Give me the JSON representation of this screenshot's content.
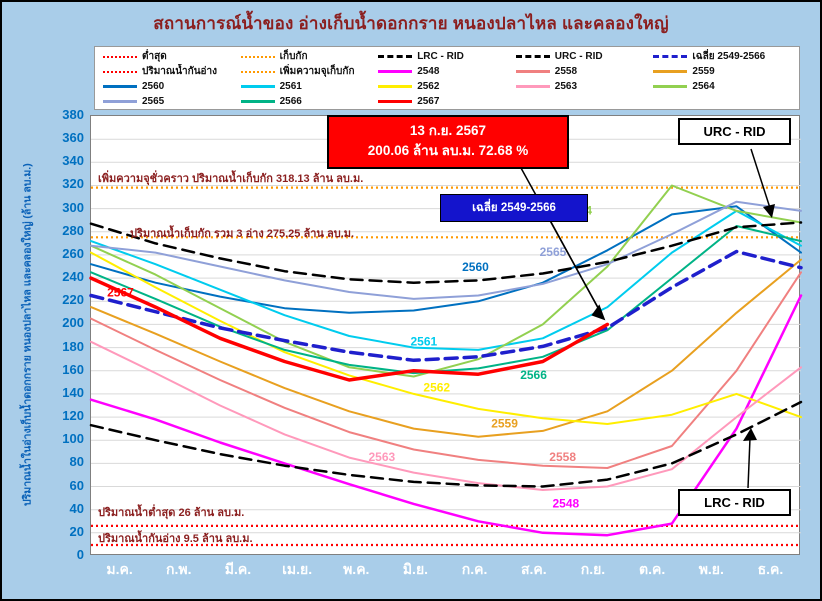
{
  "title": "สถานการณ์น้ำของ อ่างเก็บน้ำดอกกราย หนองปลาไหล และคลองใหญ่",
  "y_axis_title": "ปริมาณน้ำในอ่างเก็บน้ำดอกกราย หนองปลาไหล และคลองใหญ่ (ล้าน ลบ.ม.)",
  "annotations": {
    "callout_date": "13 ก.ย. 2567",
    "callout_value": "200.06 ล้าน ลบ.ม. 72.68 %",
    "avg_label": "เฉลี่ย 2549-2566",
    "urc_label": "URC - RID",
    "lrc_label": "LRC - RID",
    "temp_capacity_note": "เพิ่มความจุชั่วคราว ปริมาณน้ำเก็บกัก 318.13 ล้าน ลบ.ม.",
    "capacity_note": "ปริมาณน้ำเก็บกัก รวม 3 อ่าง 275.25 ล้าน ลบ.ม.",
    "min_note": "ปริมาณน้ำต่ำสุด 26 ล้าน ลบ.ม.",
    "dead_storage_note": "ปริมาณน้ำกันอ่าง 9.5 ล้าน ลบ.ม."
  },
  "legend": {
    "position": "top",
    "items": [
      {
        "label": "ต่ำสุด",
        "color": "#FF0000",
        "style": "dotted"
      },
      {
        "label": "เก็บกัก",
        "color": "#FF9900",
        "style": "dotted"
      },
      {
        "label": "LRC - RID",
        "color": "#000000",
        "style": "dashed"
      },
      {
        "label": "URC - RID",
        "color": "#000000",
        "style": "dashed"
      },
      {
        "label": "เฉลี่ย 2549-2566",
        "color": "#1F1FCC",
        "style": "dashed"
      },
      {
        "label": "ปริมาณน้ำกันอ่าง",
        "color": "#FF0000",
        "style": "dotted"
      },
      {
        "label": "เพิ่มความจุเก็บกัก",
        "color": "#FF9900",
        "style": "dotted"
      },
      {
        "label": "2548",
        "color": "#FF00FF",
        "style": "solid"
      },
      {
        "label": "2558",
        "color": "#F08080",
        "style": "solid"
      },
      {
        "label": "2559",
        "color": "#E8A020",
        "style": "solid"
      },
      {
        "label": "2560",
        "color": "#0070C0",
        "style": "solid"
      },
      {
        "label": "2561",
        "color": "#00CCEE",
        "style": "solid"
      },
      {
        "label": "2562",
        "color": "#FFEE00",
        "style": "solid"
      },
      {
        "label": "2563",
        "color": "#FF99BB",
        "style": "solid"
      },
      {
        "label": "2564",
        "color": "#92D050",
        "style": "solid"
      },
      {
        "label": "2565",
        "color": "#8FA0D8",
        "style": "solid"
      },
      {
        "label": "2566",
        "color": "#00B386",
        "style": "solid"
      },
      {
        "label": "2567",
        "color": "#FF0000",
        "style": "solid"
      }
    ]
  },
  "chart_data": {
    "type": "line",
    "title": "สถานการณ์น้ำของ อ่างเก็บน้ำดอกกราย หนองปลาไหล และคลองใหญ่",
    "xlabel": "",
    "ylabel": "ปริมาณน้ำในอ่างเก็บน้ำดอกกราย หนองปลาไหล และคลองใหญ่ (ล้าน ลบ.ม.)",
    "x_labels": [
      "ม.ค.",
      "ก.พ.",
      "มี.ค.",
      "เม.ย.",
      "พ.ค.",
      "มิ.ย.",
      "ก.ค.",
      "ส.ค.",
      "ก.ย.",
      "ต.ค.",
      "พ.ย.",
      "ธ.ค."
    ],
    "ylim": [
      0,
      380
    ],
    "y_tick_step": 20,
    "grid": "horizontal",
    "reference_lines": [
      {
        "name": "ปริมาณน้ำกันอ่าง",
        "value": 9.5,
        "color": "#FF0000",
        "style": "dotted"
      },
      {
        "name": "ต่ำสุด",
        "value": 26,
        "color": "#FF0000",
        "style": "dotted"
      },
      {
        "name": "เก็บกัก รวม 3 อ่าง",
        "value": 275.25,
        "color": "#FF9900",
        "style": "dotted"
      },
      {
        "name": "เพิ่มความจุชั่วคราว",
        "value": 318.13,
        "color": "#FF9900",
        "style": "dotted"
      }
    ],
    "latest_point": {
      "date": "13 ก.ย. 2567",
      "value": 200.06,
      "percent": 72.68
    },
    "series": [
      {
        "name": "2548",
        "color": "#FF00FF",
        "width": 2.5,
        "values": [
          135,
          118,
          98,
          80,
          62,
          45,
          30,
          20,
          18,
          28,
          110,
          225
        ]
      },
      {
        "name": "2558",
        "color": "#F08080",
        "width": 2,
        "values": [
          205,
          178,
          152,
          128,
          107,
          92,
          83,
          78,
          76,
          95,
          160,
          245
        ]
      },
      {
        "name": "2559",
        "color": "#E8A020",
        "width": 2,
        "values": [
          215,
          192,
          168,
          145,
          125,
          110,
          103,
          108,
          125,
          160,
          210,
          256
        ]
      },
      {
        "name": "2560",
        "color": "#0070C0",
        "width": 2,
        "values": [
          252,
          236,
          224,
          214,
          210,
          212,
          220,
          236,
          264,
          295,
          302,
          262
        ]
      },
      {
        "name": "2561",
        "color": "#00CCEE",
        "width": 2,
        "values": [
          272,
          252,
          230,
          208,
          190,
          180,
          178,
          188,
          215,
          262,
          298,
          268
        ]
      },
      {
        "name": "2562",
        "color": "#FFEE00",
        "width": 2,
        "values": [
          262,
          232,
          203,
          176,
          156,
          140,
          127,
          119,
          114,
          122,
          140,
          120
        ]
      },
      {
        "name": "2563",
        "color": "#FF99BB",
        "width": 2,
        "values": [
          185,
          158,
          130,
          105,
          85,
          72,
          63,
          57,
          60,
          75,
          120,
          163
        ]
      },
      {
        "name": "2564",
        "color": "#92D050",
        "width": 2,
        "values": [
          268,
          243,
          214,
          185,
          163,
          155,
          170,
          200,
          250,
          320,
          298,
          288
        ]
      },
      {
        "name": "2565",
        "color": "#8FA0D8",
        "width": 2,
        "values": [
          268,
          262,
          250,
          238,
          228,
          222,
          225,
          235,
          252,
          278,
          306,
          298
        ]
      },
      {
        "name": "2566",
        "color": "#00B386",
        "width": 2,
        "values": [
          245,
          222,
          198,
          178,
          165,
          158,
          162,
          172,
          195,
          240,
          285,
          272
        ]
      },
      {
        "name": "LRC - RID",
        "color": "#000000",
        "width": 2.5,
        "dash": "dashed",
        "values": [
          113,
          100,
          88,
          78,
          70,
          64,
          61,
          60,
          66,
          80,
          105,
          133
        ]
      },
      {
        "name": "URC - RID",
        "color": "#000000",
        "width": 2.5,
        "dash": "dashed",
        "values": [
          287,
          270,
          257,
          246,
          239,
          236,
          238,
          244,
          254,
          268,
          284,
          288
        ]
      },
      {
        "name": "เฉลี่ย 2549-2566",
        "color": "#1F1FCC",
        "width": 3.5,
        "dash": "dashed",
        "values": [
          225,
          211,
          197,
          186,
          176,
          169,
          172,
          181,
          197,
          232,
          263,
          249
        ]
      },
      {
        "name": "2567",
        "color": "#FF0000",
        "width": 3.5,
        "values": [
          240,
          215,
          188,
          168,
          152,
          160,
          157,
          168,
          200
        ]
      }
    ],
    "series_labels": [
      {
        "text": "2567",
        "m": 0.25,
        "v": 224
      },
      {
        "text": "2560",
        "m": 5.75,
        "v": 246
      },
      {
        "text": "2561",
        "m": 4.95,
        "v": 182
      },
      {
        "text": "2562",
        "m": 5.15,
        "v": 142
      },
      {
        "text": "2563",
        "m": 4.3,
        "v": 82
      },
      {
        "text": "2559",
        "m": 6.2,
        "v": 111
      },
      {
        "text": "2558",
        "m": 7.1,
        "v": 82
      },
      {
        "text": "2548",
        "m": 7.15,
        "v": 42
      },
      {
        "text": "2565",
        "m": 6.95,
        "v": 259
      },
      {
        "text": "2564",
        "m": 7.35,
        "v": 295
      },
      {
        "text": "2566",
        "m": 6.65,
        "v": 153
      }
    ]
  }
}
